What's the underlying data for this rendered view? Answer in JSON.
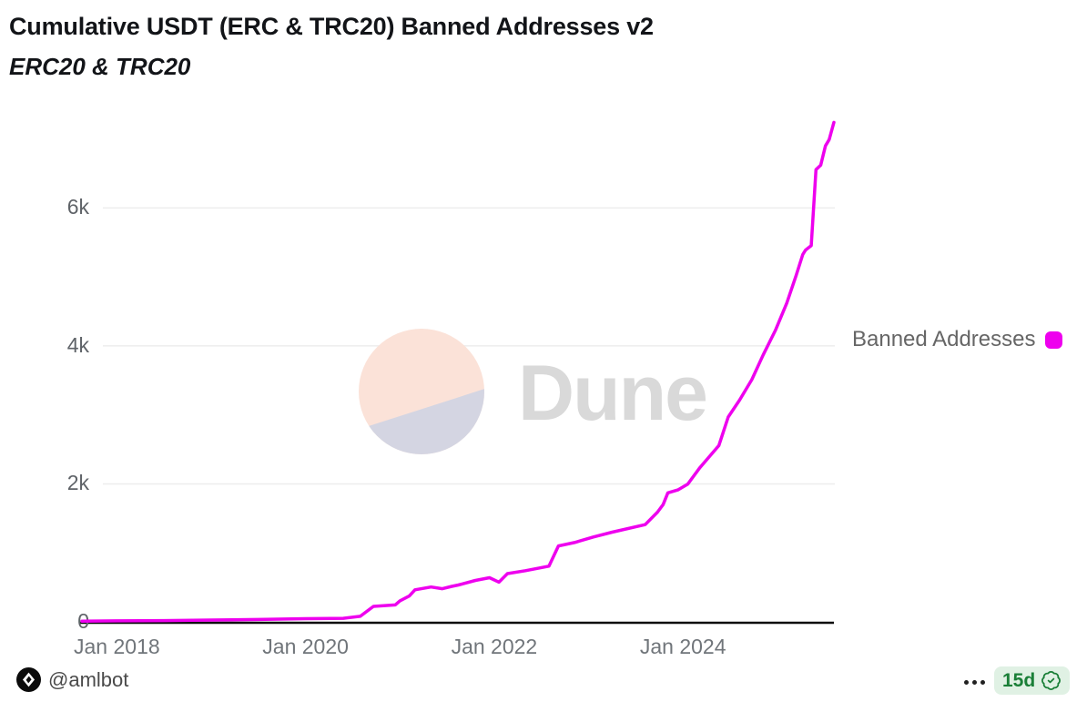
{
  "header": {
    "title": "Cumulative USDT (ERC & TRC20) Banned Addresses v2",
    "subtitle": "ERC20 & TRC20"
  },
  "legend": {
    "label": "Banned Addresses",
    "marker_color": "#EE00EE"
  },
  "watermark": {
    "text": "Dune"
  },
  "footer": {
    "author": "@amlbot",
    "author_icon": "amlbot-logo-icon",
    "menu_icon": "ellipsis-icon",
    "badge": {
      "label": "15d",
      "icon": "badge-check-icon",
      "text_color": "#1a7f37",
      "bg_color": "#e0f1e4"
    }
  },
  "colors": {
    "line": "#EE00EE",
    "gridline": "#ededed",
    "axis": "#0d0d0d",
    "watermark_peach": "#fbe2d8",
    "watermark_lavender": "#d4d5e2"
  },
  "chart_data": {
    "type": "line",
    "title": "Cumulative USDT (ERC & TRC20) Banned Addresses v2",
    "subtitle": "ERC20 & TRC20",
    "xlabel": "",
    "ylabel": "",
    "grid": "horizontal",
    "legend_position": "right",
    "xlim": [
      2017.63,
      2025.6
    ],
    "ylim": [
      0,
      7430
    ],
    "x_ticks": [
      {
        "label": "Jan 2018",
        "value": 2018
      },
      {
        "label": "Jan 2020",
        "value": 2020
      },
      {
        "label": "Jan 2022",
        "value": 2022
      },
      {
        "label": "Jan 2024",
        "value": 2024
      }
    ],
    "y_ticks": [
      {
        "label": "0",
        "value": 0
      },
      {
        "label": "2k",
        "value": 2000
      },
      {
        "label": "4k",
        "value": 4000
      },
      {
        "label": "6k",
        "value": 6000
      }
    ],
    "series": [
      {
        "name": "Banned Addresses",
        "color": "#EE00EE",
        "points": [
          [
            2017.63,
            10
          ],
          [
            2018.0,
            14
          ],
          [
            2018.5,
            18
          ],
          [
            2019.0,
            26
          ],
          [
            2019.5,
            34
          ],
          [
            2020.0,
            46
          ],
          [
            2020.4,
            52
          ],
          [
            2020.58,
            80
          ],
          [
            2020.72,
            225
          ],
          [
            2020.95,
            245
          ],
          [
            2021.0,
            305
          ],
          [
            2021.1,
            375
          ],
          [
            2021.16,
            465
          ],
          [
            2021.33,
            505
          ],
          [
            2021.45,
            480
          ],
          [
            2021.55,
            515
          ],
          [
            2021.62,
            535
          ],
          [
            2021.8,
            600
          ],
          [
            2021.95,
            640
          ],
          [
            2022.05,
            575
          ],
          [
            2022.14,
            700
          ],
          [
            2022.33,
            742
          ],
          [
            2022.58,
            808
          ],
          [
            2022.68,
            1100
          ],
          [
            2022.85,
            1150
          ],
          [
            2023.05,
            1230
          ],
          [
            2023.25,
            1300
          ],
          [
            2023.6,
            1410
          ],
          [
            2023.73,
            1590
          ],
          [
            2023.79,
            1700
          ],
          [
            2023.84,
            1870
          ],
          [
            2023.95,
            1915
          ],
          [
            2024.05,
            1995
          ],
          [
            2024.18,
            2235
          ],
          [
            2024.38,
            2555
          ],
          [
            2024.48,
            2970
          ],
          [
            2024.6,
            3215
          ],
          [
            2024.73,
            3510
          ],
          [
            2024.85,
            3870
          ],
          [
            2024.98,
            4225
          ],
          [
            2025.1,
            4620
          ],
          [
            2025.2,
            5020
          ],
          [
            2025.27,
            5325
          ],
          [
            2025.3,
            5390
          ],
          [
            2025.36,
            5455
          ],
          [
            2025.41,
            6555
          ],
          [
            2025.46,
            6620
          ],
          [
            2025.51,
            6900
          ],
          [
            2025.55,
            6990
          ],
          [
            2025.6,
            7240
          ]
        ]
      }
    ]
  }
}
